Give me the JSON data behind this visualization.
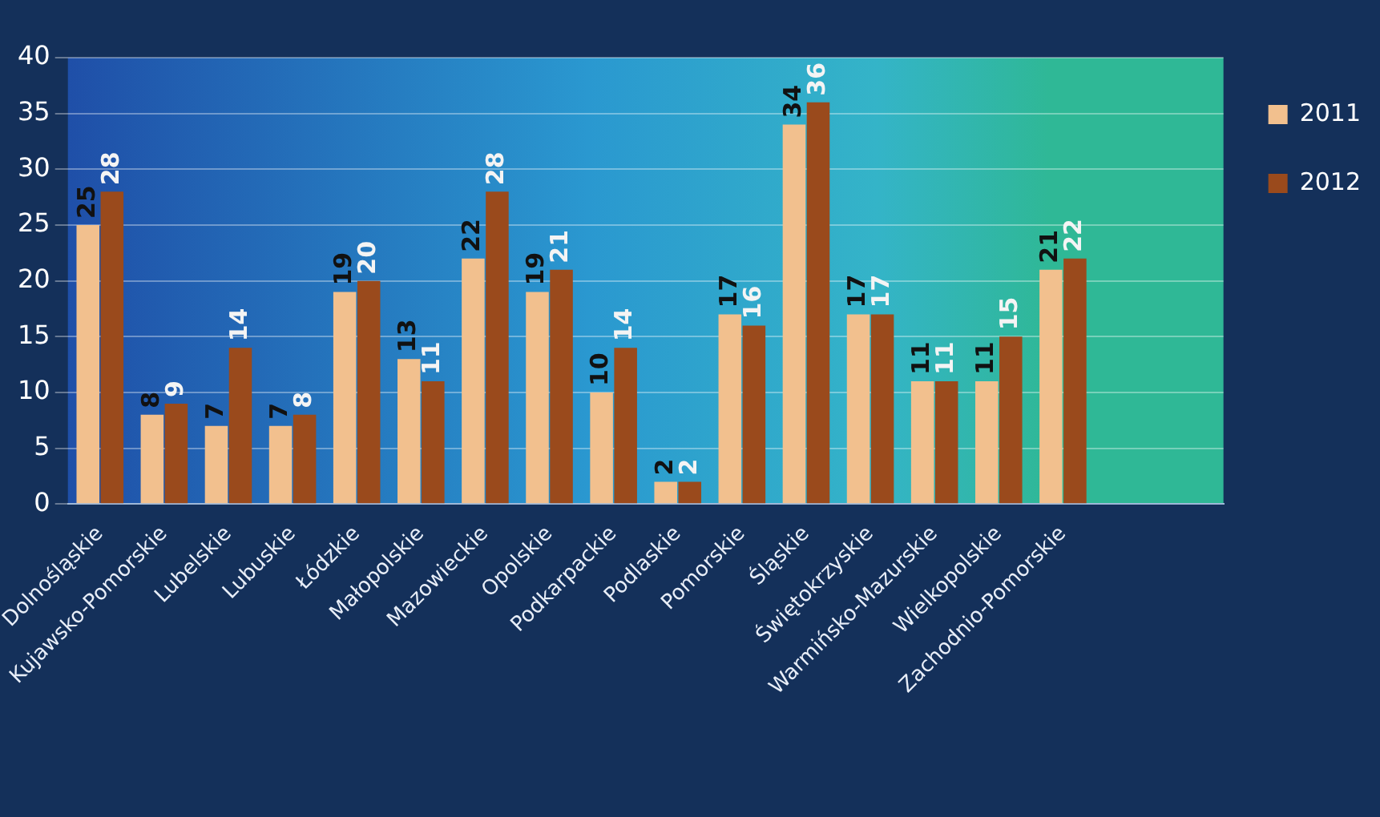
{
  "chart_data": {
    "type": "bar",
    "categories": [
      "Dolnośląskie",
      "Kujawsko-Pomorskie",
      "Lubelskie",
      "Lubuskie",
      "Łódzkie",
      "Małopolskie",
      "Mazowieckie",
      "Opolskie",
      "Podkarpackie",
      "Podlaskie",
      "Pomorskie",
      "Śląskie",
      "Świętokrzyskie",
      "Warmińsko-Mazurskie",
      "Wielkopolskie",
      "Zachodnio-Pomorskie",
      null,
      null
    ],
    "series": [
      {
        "name": "2011",
        "color": "#f2c08e",
        "values": [
          25,
          8,
          7,
          7,
          19,
          13,
          22,
          19,
          10,
          2,
          17,
          34,
          17,
          11,
          11,
          21,
          null,
          null
        ]
      },
      {
        "name": "2012",
        "color": "#9a4a1c",
        "values": [
          28,
          9,
          14,
          8,
          20,
          11,
          28,
          21,
          14,
          2,
          16,
          36,
          17,
          11,
          15,
          22,
          null,
          null
        ]
      }
    ],
    "ylim": [
      0,
      40
    ],
    "yticks": [
      0,
      5,
      10,
      15,
      20,
      25,
      30,
      35,
      40
    ],
    "grid": "y",
    "legend": "top right",
    "data_labels": true
  }
}
